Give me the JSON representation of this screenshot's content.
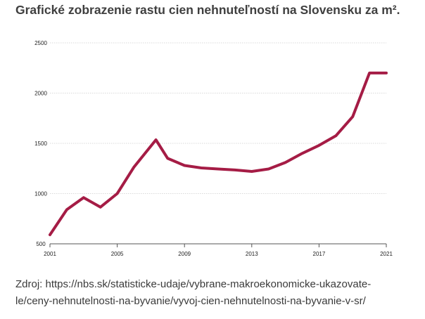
{
  "title": "Grafické zobrazenie rastu cien nehnuteľností na Slovensku za m².",
  "source": {
    "line1": "Zdroj: https://nbs.sk/statisticke-udaje/vybrane-makroekonomicke-ukazovate-",
    "line2": "le/ceny-nehnutelnosti-na-byvanie/vyvoj-cien-nehnutelnosti-na-byvanie-v-sr/"
  },
  "colors": {
    "line": "#a51c45",
    "grid": "#d9d9d9",
    "axis": "#555555"
  },
  "chart_data": {
    "type": "line",
    "title": "",
    "xlabel": "",
    "ylabel": "",
    "xlim": [
      2001,
      2021
    ],
    "ylim": [
      500,
      2500
    ],
    "grid": true,
    "x_ticks": [
      2001,
      2005,
      2009,
      2013,
      2017,
      2021
    ],
    "y_ticks": [
      500,
      1000,
      1500,
      2000,
      2500
    ],
    "x_tick_labels": [
      "2001",
      "2005",
      "2009",
      "2013",
      "2017",
      "2021"
    ],
    "y_tick_labels": [
      "500",
      "1000",
      "1500",
      "2000",
      "2500"
    ],
    "series": [
      {
        "x": [
          2001,
          2002,
          2003,
          2004,
          2005,
          2006,
          2007.3,
          2008,
          2009,
          2010,
          2011,
          2012,
          2013,
          2014,
          2015,
          2016,
          2017,
          2018,
          2019,
          2020,
          2021
        ],
        "values": [
          590,
          840,
          960,
          865,
          1000,
          1265,
          1535,
          1350,
          1280,
          1255,
          1245,
          1235,
          1220,
          1245,
          1310,
          1400,
          1480,
          1575,
          1765,
          2200,
          2200
        ]
      }
    ]
  }
}
